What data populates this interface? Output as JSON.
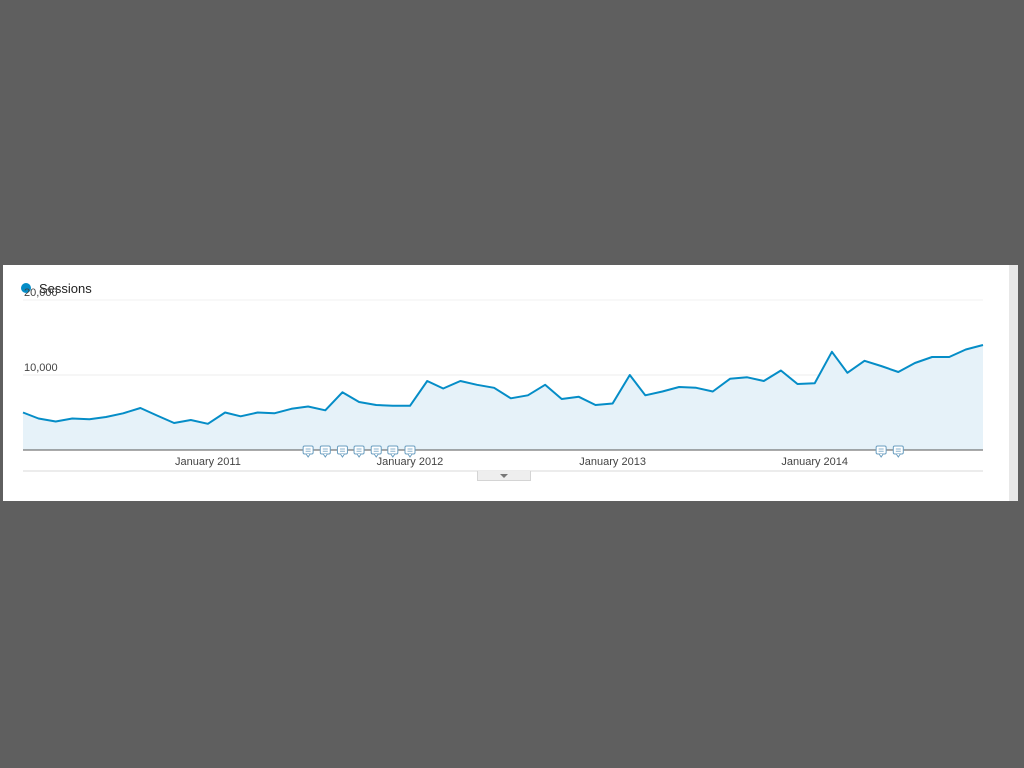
{
  "legend": {
    "label": "Sessions",
    "color": "#058dc7"
  },
  "icons": {
    "expander": "chevron-down-icon",
    "annotation": "annotation-icon"
  },
  "chart_data": {
    "type": "area",
    "title": "",
    "xlabel": "",
    "ylabel": "",
    "ylim": [
      0,
      20000
    ],
    "y_ticks": [
      {
        "value": 10000,
        "label": "10,000"
      },
      {
        "value": 20000,
        "label": "20,000"
      }
    ],
    "x_ticks": [
      {
        "date": "2011-01",
        "label": "January 2011"
      },
      {
        "date": "2012-01",
        "label": "January 2012"
      },
      {
        "date": "2013-01",
        "label": "January 2013"
      },
      {
        "date": "2014-01",
        "label": "January 2014"
      }
    ],
    "grid": true,
    "line_color": "#058dc7",
    "fill_color": "#e6f2f9",
    "series": [
      {
        "name": "Sessions",
        "x": [
          "2010-02",
          "2010-03",
          "2010-04",
          "2010-05",
          "2010-06",
          "2010-07",
          "2010-08",
          "2010-09",
          "2010-10",
          "2010-11",
          "2010-12",
          "2011-01",
          "2011-02",
          "2011-03",
          "2011-04",
          "2011-05",
          "2011-06",
          "2011-07",
          "2011-08",
          "2011-09",
          "2011-10",
          "2011-11",
          "2011-12",
          "2012-01",
          "2012-02",
          "2012-03",
          "2012-04",
          "2012-05",
          "2012-06",
          "2012-07",
          "2012-08",
          "2012-09",
          "2012-10",
          "2012-11",
          "2012-12",
          "2013-01",
          "2013-02",
          "2013-03",
          "2013-04",
          "2013-05",
          "2013-06",
          "2013-07",
          "2013-08",
          "2013-09",
          "2013-10",
          "2013-11",
          "2013-12",
          "2014-01",
          "2014-02",
          "2014-03",
          "2014-04",
          "2014-05",
          "2014-06",
          "2014-07",
          "2014-08",
          "2014-09",
          "2014-10",
          "2014-11"
        ],
        "values": [
          5000,
          4200,
          3800,
          4200,
          4100,
          4400,
          4900,
          5600,
          4600,
          3600,
          4000,
          3500,
          5000,
          4500,
          5000,
          4900,
          5500,
          5800,
          5300,
          7700,
          6400,
          6000,
          5900,
          5900,
          9200,
          8200,
          9200,
          8700,
          8300,
          6900,
          7300,
          8700,
          6800,
          7100,
          6000,
          6200,
          10000,
          7300,
          7800,
          8400,
          8300,
          7800,
          9500,
          9700,
          9200,
          10600,
          8800,
          8900,
          13100,
          10300,
          11900,
          11200,
          10400,
          11600,
          12400,
          12400,
          13400,
          14000
        ]
      }
    ],
    "annotations": [
      {
        "x": "2011-07"
      },
      {
        "x": "2011-08"
      },
      {
        "x": "2011-09"
      },
      {
        "x": "2011-10"
      },
      {
        "x": "2011-11"
      },
      {
        "x": "2011-12"
      },
      {
        "x": "2012-01"
      },
      {
        "x": "2014-05"
      },
      {
        "x": "2014-06"
      }
    ]
  }
}
